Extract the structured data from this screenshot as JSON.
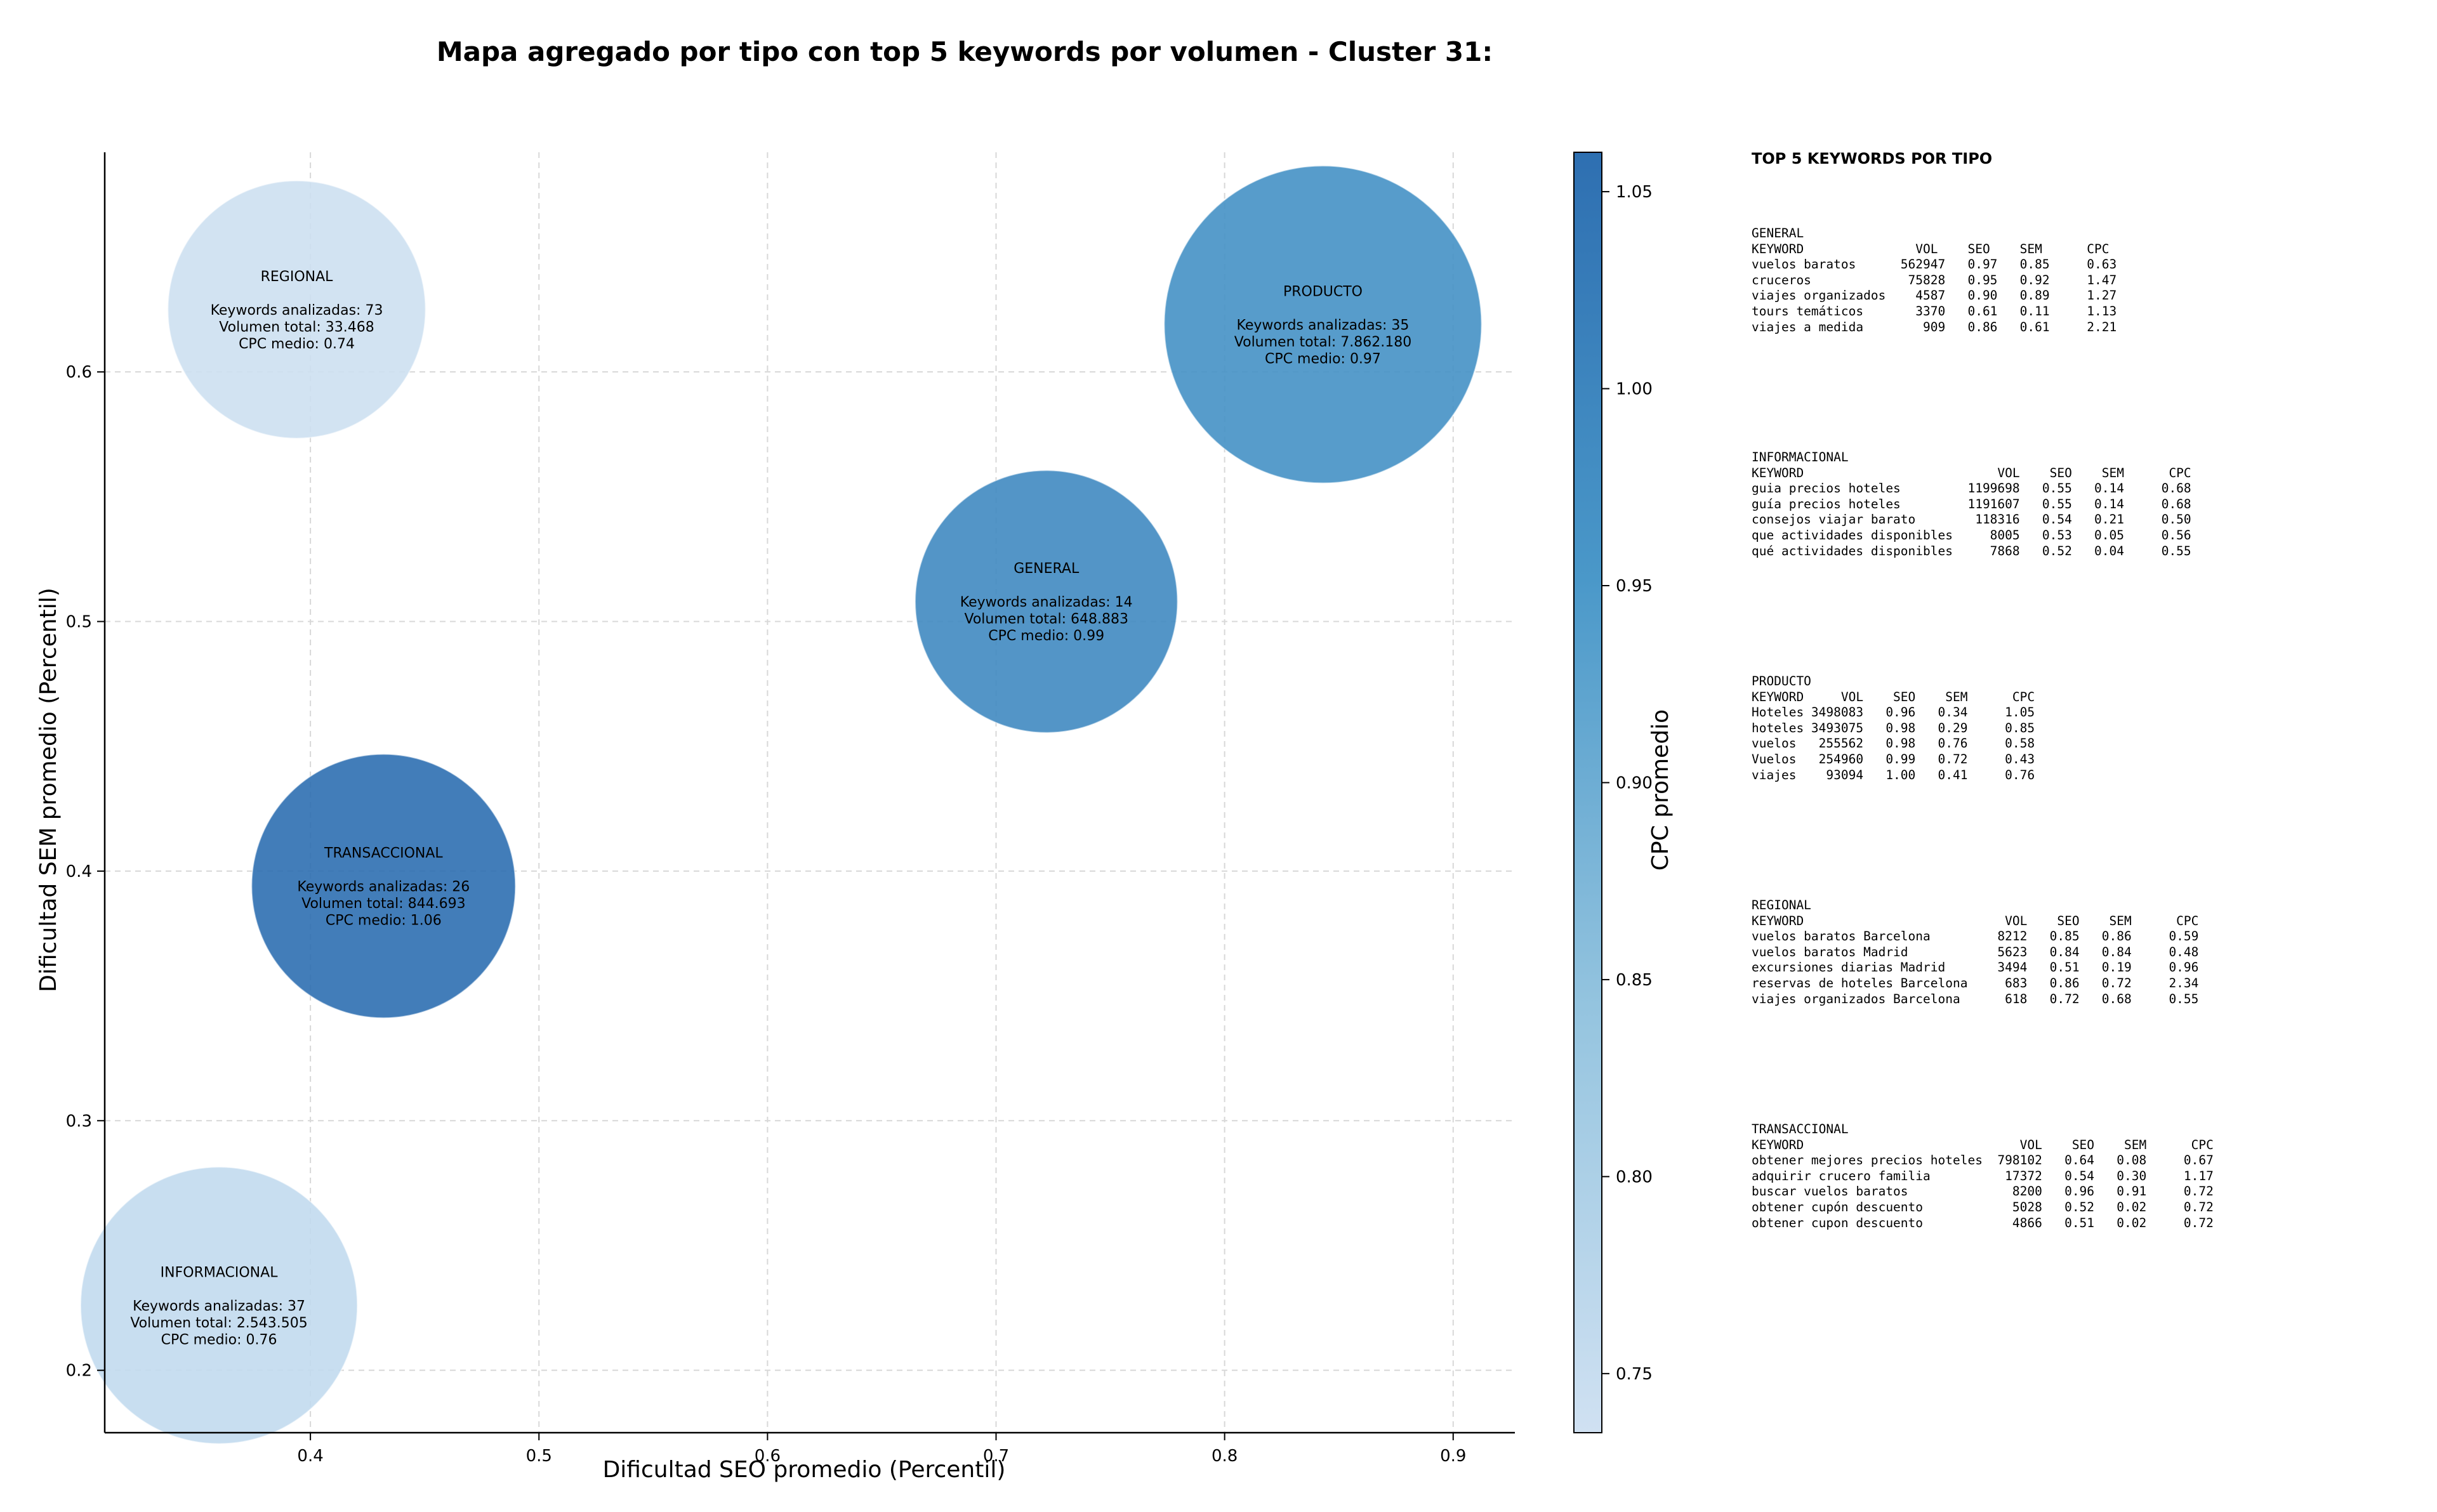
{
  "chart_data": {
    "type": "scatter",
    "title": "Mapa agregado por tipo con top 5 keywords por volumen - Cluster 31:",
    "xlabel": "Dificultad SEO promedio (Percentil)",
    "ylabel": "Dificultad SEM promedio (Percentil)",
    "xlim": [
      0.31,
      0.927
    ],
    "ylim": [
      0.175,
      0.688
    ],
    "xticks": [
      0.4,
      0.5,
      0.6,
      0.7,
      0.8,
      0.9
    ],
    "xtick_labels": [
      "0.4",
      "0.5",
      "0.6",
      "0.7",
      "0.8",
      "0.9"
    ],
    "yticks": [
      0.2,
      0.3,
      0.4,
      0.5,
      0.6
    ],
    "ytick_labels": [
      "0.2",
      "0.3",
      "0.4",
      "0.5",
      "0.6"
    ],
    "grid": true,
    "size_encodes": "Volumen total",
    "color_encodes": "CPC promedio",
    "points": [
      {
        "name": "REGIONAL",
        "x": 0.394,
        "y": 0.625,
        "keywords": 73,
        "volume": 33468,
        "cpc": 0.74,
        "label_lines": [
          "Keywords analizadas: 73",
          "Volumen total: 33.468",
          "CPC medio: 0.74"
        ]
      },
      {
        "name": "PRODUCTO",
        "x": 0.843,
        "y": 0.619,
        "keywords": 35,
        "volume": 7862180,
        "cpc": 0.97,
        "label_lines": [
          "Keywords analizadas: 35",
          "Volumen total: 7.862.180",
          "CPC medio: 0.97"
        ]
      },
      {
        "name": "GENERAL",
        "x": 0.722,
        "y": 0.508,
        "keywords": 14,
        "volume": 648883,
        "cpc": 0.99,
        "label_lines": [
          "Keywords analizadas: 14",
          "Volumen total: 648.883",
          "CPC medio: 0.99"
        ]
      },
      {
        "name": "TRANSACCIONAL",
        "x": 0.432,
        "y": 0.394,
        "keywords": 26,
        "volume": 844693,
        "cpc": 1.06,
        "label_lines": [
          "Keywords analizadas: 26",
          "Volumen total: 844.693",
          "CPC medio: 1.06"
        ]
      },
      {
        "name": "INFORMACIONAL",
        "x": 0.36,
        "y": 0.226,
        "keywords": 37,
        "volume": 2543505,
        "cpc": 0.76,
        "label_lines": [
          "Keywords analizadas: 37",
          "Volumen total: 2.543.505",
          "CPC medio: 0.76"
        ]
      }
    ],
    "colorbar": {
      "label": "CPC promedio",
      "min": 0.735,
      "max": 1.06,
      "ticks": [
        0.75,
        0.8,
        0.85,
        0.9,
        0.95,
        1.0,
        1.05
      ],
      "tick_labels": [
        "0.75",
        "0.80",
        "0.85",
        "0.90",
        "0.95",
        "1.00",
        "1.05"
      ],
      "colors": [
        "#d0e1f2",
        "#94c4df",
        "#4a98c9",
        "#2e6fb1"
      ]
    }
  },
  "keywords_panel": {
    "heading": "TOP 5 KEYWORDS POR TIPO",
    "blocks": [
      {
        "name": "general",
        "text": "GENERAL\nKEYWORD               VOL    SEO    SEM      CPC\nvuelos baratos      562947   0.97   0.85     0.63\ncruceros             75828   0.95   0.92     1.47\nviajes organizados    4587   0.90   0.89     1.27\ntours temáticos       3370   0.61   0.11     1.13\nviajes a medida        909   0.86   0.61     2.21"
      },
      {
        "name": "informacional",
        "text": "INFORMACIONAL\nKEYWORD                          VOL    SEO    SEM      CPC\nguia precios hoteles         1199698   0.55   0.14     0.68\nguía precios hoteles         1191607   0.55   0.14     0.68\nconsejos viajar barato        118316   0.54   0.21     0.50\nque actividades disponibles     8005   0.53   0.05     0.56\nqué actividades disponibles     7868   0.52   0.04     0.55"
      },
      {
        "name": "producto",
        "text": "PRODUCTO\nKEYWORD     VOL    SEO    SEM      CPC\nHoteles 3498083   0.96   0.34     1.05\nhoteles 3493075   0.98   0.29     0.85\nvuelos   255562   0.98   0.76     0.58\nVuelos   254960   0.99   0.72     0.43\nviajes    93094   1.00   0.41     0.76"
      },
      {
        "name": "regional",
        "text": "REGIONAL\nKEYWORD                           VOL    SEO    SEM      CPC\nvuelos baratos Barcelona         8212   0.85   0.86     0.59\nvuelos baratos Madrid            5623   0.84   0.84     0.48\nexcursiones diarias Madrid       3494   0.51   0.19     0.96\nreservas de hoteles Barcelona     683   0.86   0.72     2.34\nviajes organizados Barcelona      618   0.72   0.68     0.55"
      },
      {
        "name": "transaccional",
        "text": "TRANSACCIONAL\nKEYWORD                             VOL    SEO    SEM      CPC\nobtener mejores precios hoteles  798102   0.64   0.08     0.67\nadquirir crucero familia          17372   0.54   0.30     1.17\nbuscar vuelos baratos              8200   0.96   0.91     0.72\nobtener cupón descuento            5028   0.52   0.02     0.72\nobtener cupon descuento            4866   0.51   0.02     0.72"
      }
    ]
  }
}
